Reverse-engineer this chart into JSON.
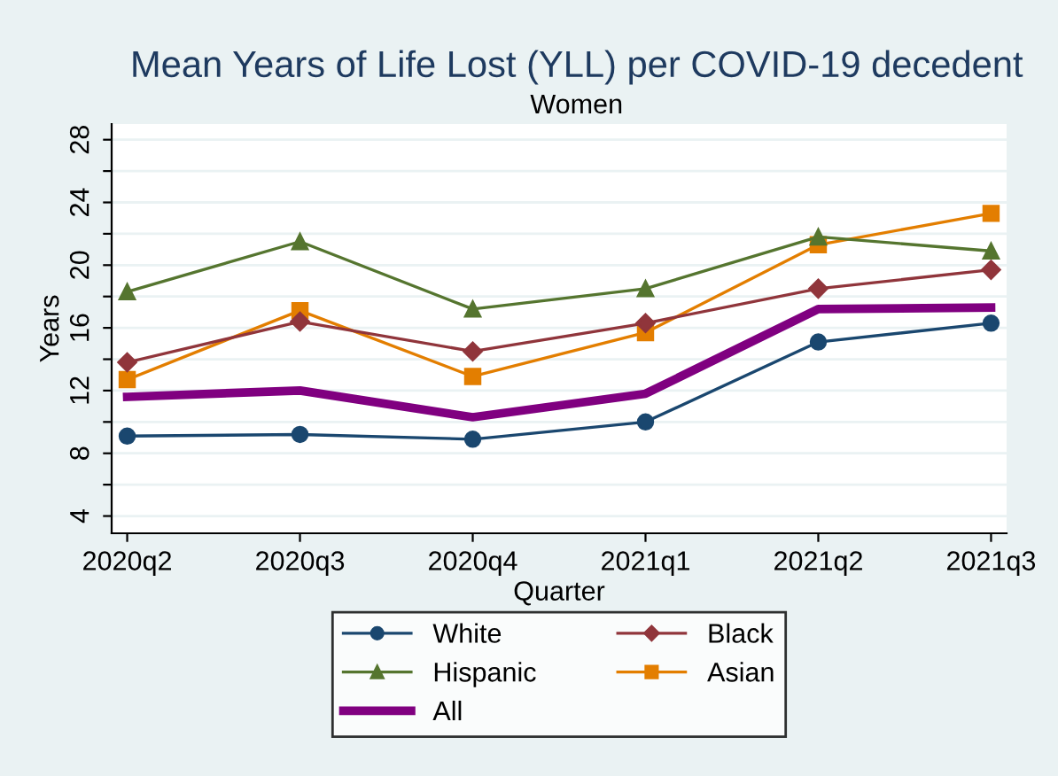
{
  "chart_data": {
    "type": "line",
    "title": "Mean Years of Life Lost (YLL) per COVID-19 decedent",
    "subtitle": "Women",
    "xlabel": "Quarter",
    "ylabel": "Years",
    "categories": [
      "2020q2",
      "2020q3",
      "2020q4",
      "2021q1",
      "2021q2",
      "2021q3"
    ],
    "series": [
      {
        "name": "White",
        "color": "#1a476f",
        "marker": "circle",
        "values": [
          9.1,
          9.2,
          8.9,
          10.0,
          15.1,
          16.3
        ]
      },
      {
        "name": "Black",
        "color": "#90353b",
        "marker": "diamond",
        "values": [
          13.8,
          16.4,
          14.5,
          16.3,
          18.5,
          19.7
        ]
      },
      {
        "name": "Hispanic",
        "color": "#55752f",
        "marker": "triangle",
        "values": [
          18.3,
          21.5,
          17.2,
          18.5,
          21.8,
          20.9
        ]
      },
      {
        "name": "Asian",
        "color": "#e37e00",
        "marker": "square",
        "values": [
          12.7,
          17.1,
          12.9,
          15.7,
          21.3,
          23.3
        ]
      },
      {
        "name": "All",
        "color": "#800080",
        "marker": "none",
        "values": [
          11.6,
          12.0,
          10.3,
          11.8,
          17.2,
          17.3
        ]
      }
    ],
    "ylim": [
      2.9,
      29
    ],
    "yticks": [
      4,
      {
        "value": 6,
        "label": null
      },
      8,
      {
        "value": 10,
        "label": null
      },
      12,
      {
        "value": 14,
        "label": null
      },
      16,
      {
        "value": 18,
        "label": null
      },
      20,
      {
        "value": 22,
        "label": null
      },
      24,
      {
        "value": 26,
        "label": null
      },
      28
    ],
    "grid": "y",
    "legend": "bottom",
    "line_style": "solid"
  }
}
